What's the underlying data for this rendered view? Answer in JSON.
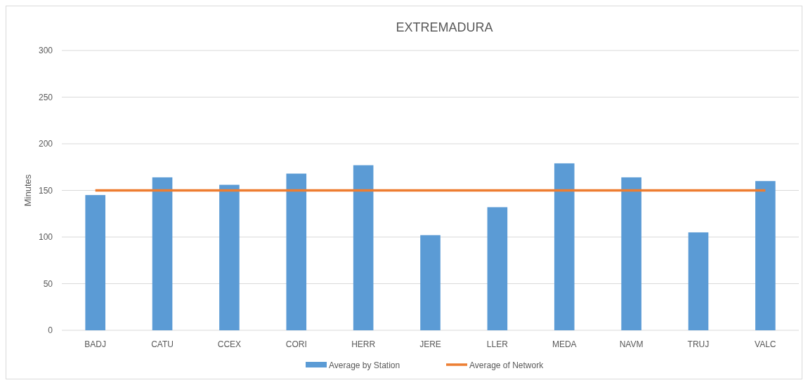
{
  "chart_data": {
    "type": "bar",
    "title": "EXTREMADURA",
    "ylabel": "Minutes",
    "categories": [
      "BADJ",
      "CATU",
      "CCEX",
      "CORI",
      "HERR",
      "JERE",
      "LLER",
      "MEDA",
      "NAVM",
      "TRUJ",
      "VALC"
    ],
    "series": [
      {
        "name": "Average by Station",
        "color": "#5b9bd5",
        "values": [
          145,
          164,
          156,
          168,
          177,
          102,
          132,
          179,
          164,
          105,
          160
        ]
      },
      {
        "name": "Average of Network",
        "type": "line",
        "color": "#ed7d31",
        "values": [
          150,
          150,
          150,
          150,
          150,
          150,
          150,
          150,
          150,
          150,
          150
        ]
      }
    ],
    "ylim": [
      0,
      300
    ],
    "yticks": [
      0,
      50,
      100,
      150,
      200,
      250,
      300
    ],
    "grid": "y",
    "legend": "bottom"
  }
}
